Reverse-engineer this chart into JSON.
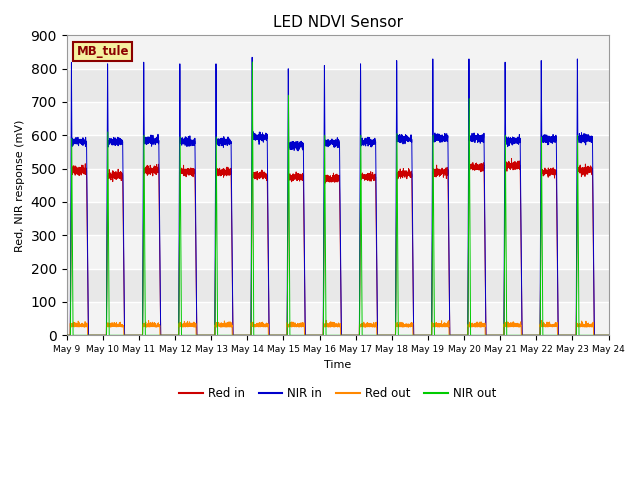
{
  "title": "LED NDVI Sensor",
  "ylabel": "Red, NIR response (mV)",
  "xlabel": "Time",
  "ylim": [
    0,
    900
  ],
  "yticks": [
    0,
    100,
    200,
    300,
    400,
    500,
    600,
    700,
    800,
    900
  ],
  "label_text": "MB_tule",
  "label_bg": "#f5f0a0",
  "label_border": "#8B0000",
  "bg_color": "#e8e8e8",
  "line_colors": {
    "red_in": "#cc0000",
    "nir_in": "#0000cc",
    "red_out": "#ff8800",
    "nir_out": "#00cc00"
  },
  "legend_labels": [
    "Red in",
    "NIR in",
    "Red out",
    "NIR out"
  ],
  "n_days": 15,
  "day_start": 9,
  "nir_in_peaks": [
    830,
    830,
    835,
    830,
    830,
    850,
    815,
    825,
    830,
    840,
    845,
    845,
    835,
    840,
    845
  ],
  "red_in_peaks": [
    495,
    480,
    495,
    490,
    490,
    480,
    475,
    470,
    475,
    485,
    490,
    505,
    510,
    490,
    495
  ],
  "nir_out_peaks": [
    590,
    610,
    600,
    595,
    595,
    820,
    720,
    600,
    600,
    605,
    600,
    710,
    600,
    595,
    600
  ]
}
